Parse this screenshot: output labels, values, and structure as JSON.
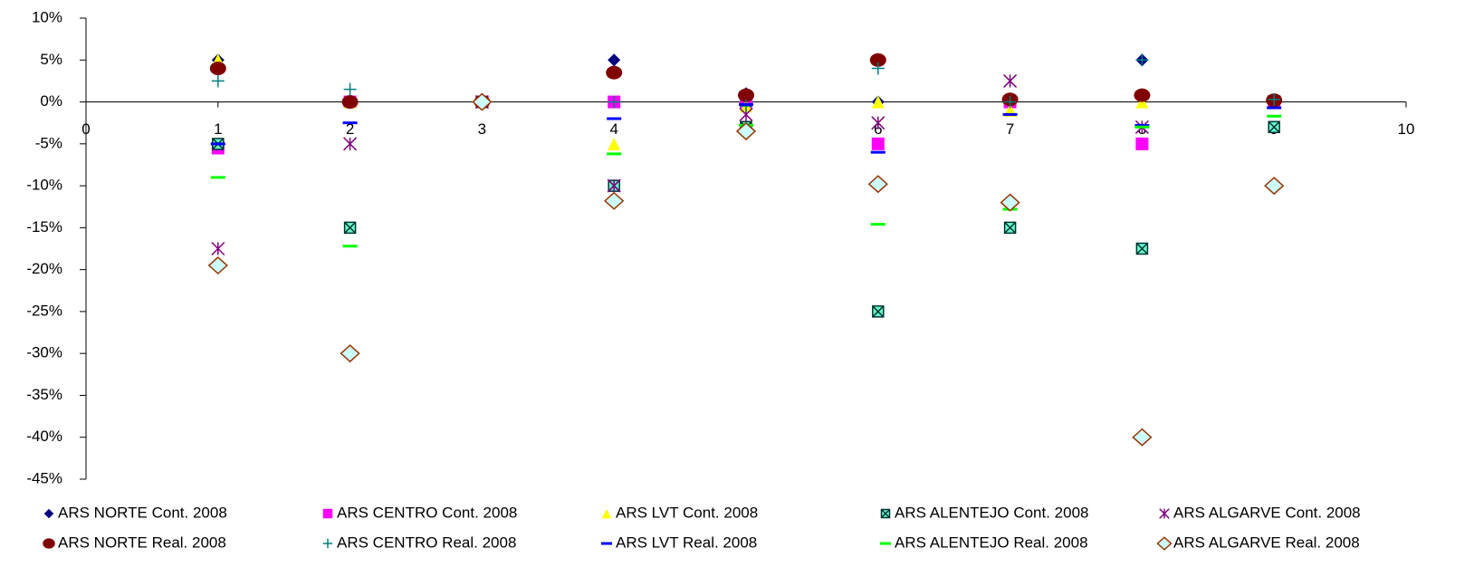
{
  "chart_data": {
    "type": "scatter",
    "x": [
      1,
      2,
      3,
      4,
      5,
      6,
      7,
      8,
      9
    ],
    "xlim": [
      0,
      10
    ],
    "xticks": [
      0,
      1,
      2,
      3,
      4,
      5,
      6,
      7,
      8,
      9,
      10
    ],
    "ylim": [
      -45,
      10
    ],
    "yticks": [
      {
        "value": 10,
        "label": "10%"
      },
      {
        "value": 5,
        "label": "5%"
      },
      {
        "value": 0,
        "label": "0%"
      },
      {
        "value": -5,
        "label": "-5%"
      },
      {
        "value": -10,
        "label": "-10%"
      },
      {
        "value": -15,
        "label": "-15%"
      },
      {
        "value": -20,
        "label": "-20%"
      },
      {
        "value": -25,
        "label": "-25%"
      },
      {
        "value": -30,
        "label": "-30%"
      },
      {
        "value": -35,
        "label": "-35%"
      },
      {
        "value": -40,
        "label": "-40%"
      },
      {
        "value": -45,
        "label": "-45%"
      }
    ],
    "legend": "bottom",
    "series": [
      {
        "name": "ARS NORTE Cont. 2008",
        "color": "#000080",
        "marker": "diamond",
        "values": [
          5,
          0,
          0,
          5,
          1,
          0,
          0,
          5,
          0
        ]
      },
      {
        "name": "ARS CENTRO Cont. 2008",
        "color": "#ff00ff",
        "marker": "square",
        "values": [
          -5.5,
          0,
          0,
          0,
          0,
          -5,
          0,
          -5,
          0
        ]
      },
      {
        "name": "ARS LVT Cont. 2008",
        "color": "#ffff00",
        "marker": "triangle",
        "values": [
          5,
          0,
          0,
          -5,
          -0.5,
          0,
          -1,
          0,
          0
        ]
      },
      {
        "name": "ARS ALENTEJO Cont. 2008",
        "color": "#00cc99",
        "marker": "xbox",
        "values": [
          -5,
          -15,
          0,
          -10,
          -3,
          -25,
          -15,
          -17.5,
          -3
        ]
      },
      {
        "name": "ARS ALGARVE Cont. 2008",
        "color": "#800080",
        "marker": "asterisk",
        "values": [
          -17.5,
          -5,
          0,
          -10,
          -1.5,
          -2.5,
          2.5,
          -3,
          0
        ]
      },
      {
        "name": "ARS NORTE Real. 2008",
        "color": "#800000",
        "marker": "circle",
        "values": [
          4,
          0,
          0,
          3.5,
          0.8,
          5,
          0.3,
          0.8,
          0.2
        ]
      },
      {
        "name": "ARS CENTRO Real. 2008",
        "color": "#008080",
        "marker": "plus",
        "values": [
          2.5,
          1.5,
          0,
          0,
          -0.5,
          4,
          0,
          5,
          0.3
        ]
      },
      {
        "name": "ARS LVT Real. 2008",
        "color": "#0000ff",
        "marker": "dash",
        "values": [
          -5,
          -2.5,
          0,
          -2,
          -0.3,
          -6,
          -1.5,
          -2.8,
          -0.7
        ]
      },
      {
        "name": "ARS ALENTEJO Real. 2008",
        "color": "#00ff00",
        "marker": "dash",
        "values": [
          -9,
          -17.2,
          0,
          -6.2,
          -2.8,
          -14.6,
          -12.8,
          -3,
          -1.7
        ]
      },
      {
        "name": "ARS ALGARVE Real. 2008",
        "color": "#993300",
        "marker": "diamond-hollow",
        "values": [
          -19.5,
          -30,
          0,
          -11.8,
          -3.5,
          -9.8,
          -12,
          -40,
          -10
        ]
      }
    ]
  }
}
